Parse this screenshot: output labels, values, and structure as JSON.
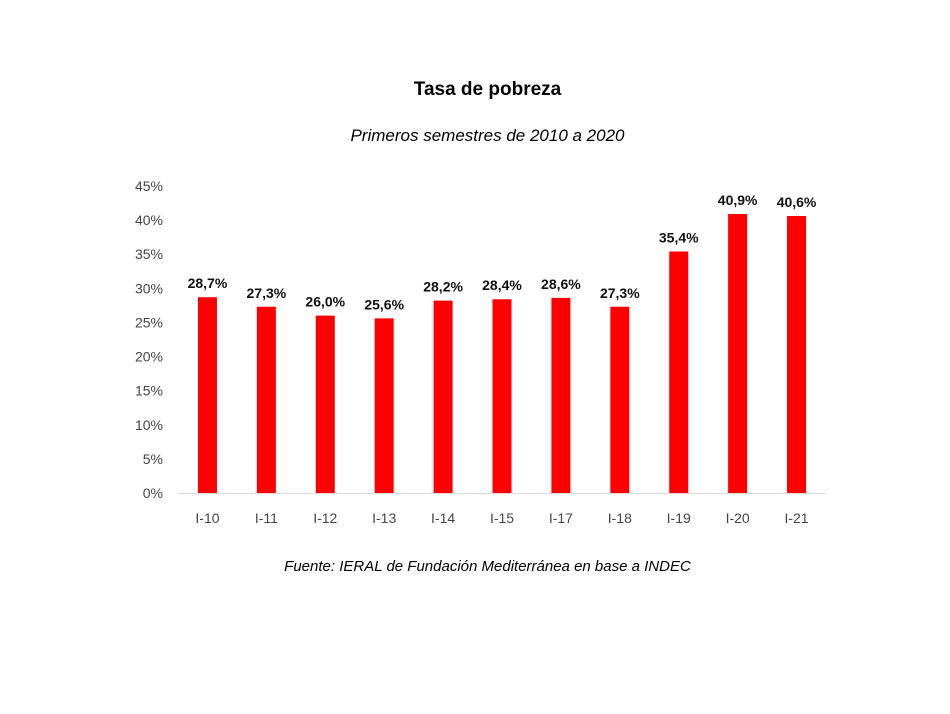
{
  "chart_data": {
    "type": "bar",
    "title": "Tasa de pobreza",
    "subtitle": "Primeros semestres de 2010 a 2020",
    "source": "Fuente: IERAL de Fundación Mediterránea en base a INDEC",
    "categories": [
      "I-10",
      "I-11",
      "I-12",
      "I-13",
      "I-14",
      "I-15",
      "I-17",
      "I-18",
      "I-19",
      "I-20",
      "I-21"
    ],
    "values": [
      28.7,
      27.3,
      26.0,
      25.6,
      28.2,
      28.4,
      28.6,
      27.3,
      35.4,
      40.9,
      40.6
    ],
    "data_labels": [
      "28,7%",
      "27,3%",
      "26,0%",
      "25,6%",
      "28,2%",
      "28,4%",
      "28,6%",
      "27,3%",
      "35,4%",
      "40,9%",
      "40,6%"
    ],
    "y_ticks": [
      "0%",
      "5%",
      "10%",
      "15%",
      "20%",
      "25%",
      "30%",
      "35%",
      "40%",
      "45%"
    ],
    "ylim": [
      0,
      45
    ],
    "xlabel": "",
    "ylabel": "",
    "grid": false,
    "legend": "none",
    "bar_color": "#ff0000"
  }
}
